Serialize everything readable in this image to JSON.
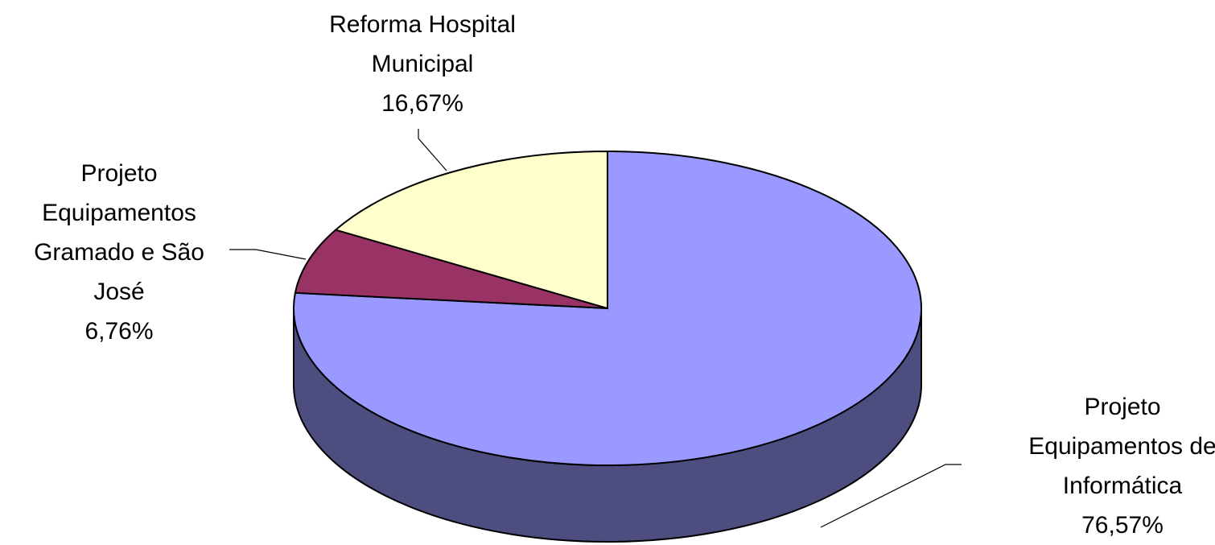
{
  "chart_data": {
    "type": "pie",
    "categories": [
      "Projeto Equipamentos de Informática",
      "Projeto Equipamentos Gramado e São José",
      "Reforma Hospital Municipal"
    ],
    "values": [
      76.57,
      6.76,
      16.67
    ],
    "value_labels": [
      "76,57%",
      "6,76%",
      "16,67%"
    ],
    "colors": [
      "#9999ff",
      "#993366",
      "#ffffcc"
    ]
  }
}
